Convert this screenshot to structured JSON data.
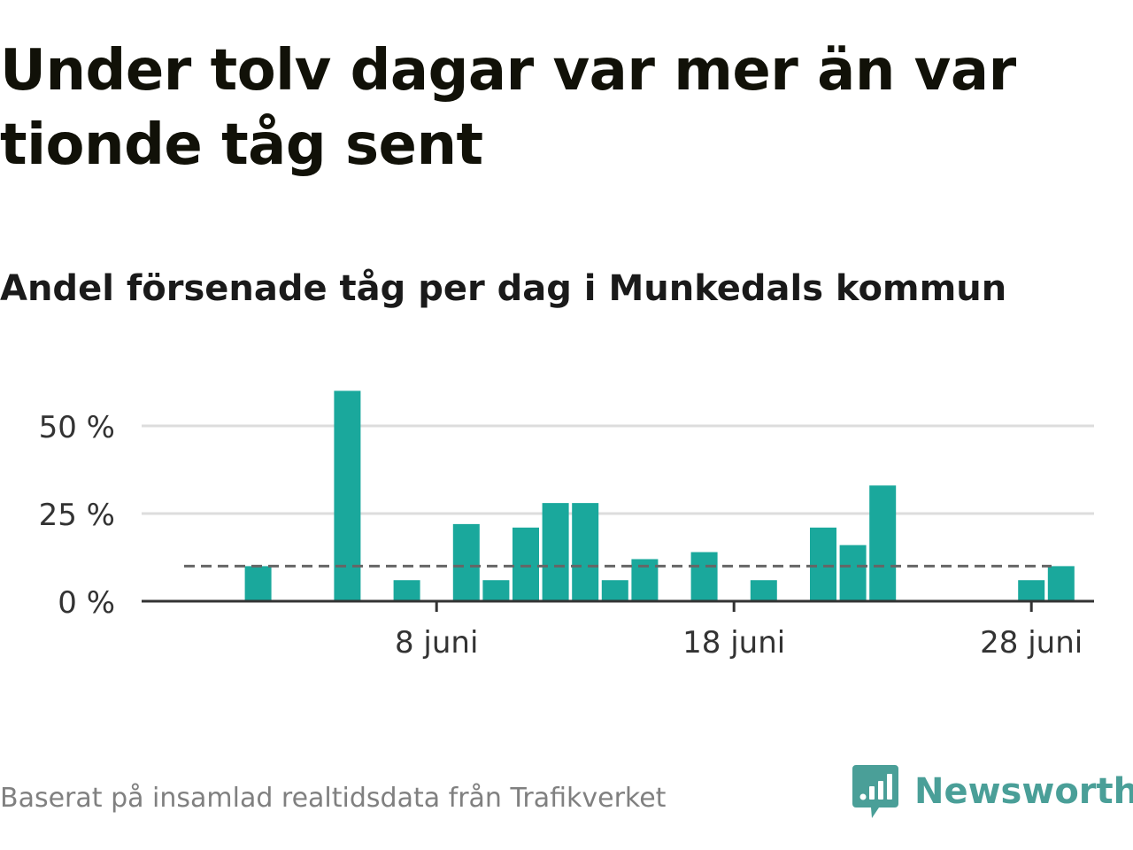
{
  "headline": "Under tolv dagar var mer än var tionde tåg sent",
  "subtitle": "Andel försenade tåg per dag i Munkedals kommun",
  "source": "Baserat på insamlad realtidsdata från Trafikverket",
  "brand": {
    "name": "Newsworthy",
    "icon": "newsworthy-logo-icon",
    "color": "#4a9f98"
  },
  "colors": {
    "bar": "#1aa89c",
    "reference_line": "#666666",
    "grid": "#dddddd",
    "axis": "#333333"
  },
  "chart_data": {
    "type": "bar",
    "x": [
      "2023-06-01",
      "2023-06-02",
      "2023-06-03",
      "2023-06-04",
      "2023-06-05",
      "2023-06-06",
      "2023-06-07",
      "2023-06-08",
      "2023-06-09",
      "2023-06-10",
      "2023-06-11",
      "2023-06-12",
      "2023-06-13",
      "2023-06-14",
      "2023-06-15",
      "2023-06-16",
      "2023-06-17",
      "2023-06-18",
      "2023-06-19",
      "2023-06-20",
      "2023-06-21",
      "2023-06-22",
      "2023-06-23",
      "2023-06-24",
      "2023-06-25",
      "2023-06-26",
      "2023-06-27",
      "2023-06-28",
      "2023-06-29"
    ],
    "values": [
      null,
      10,
      null,
      null,
      60,
      null,
      6,
      null,
      22,
      6,
      21,
      28,
      28,
      6,
      12,
      null,
      14,
      null,
      6,
      null,
      21,
      16,
      33,
      null,
      null,
      null,
      null,
      6,
      10
    ],
    "reference_line": {
      "value": 10,
      "style": "dashed"
    },
    "ylim": [
      0,
      60
    ],
    "yticks": [
      0,
      25,
      50
    ],
    "ytick_labels": [
      "0 %",
      "25 %",
      "50 %"
    ],
    "xticks": [
      "2023-06-08",
      "2023-06-18",
      "2023-06-28"
    ],
    "xtick_labels": [
      "8 juni",
      "18 juni",
      "28 juni"
    ],
    "grid": true,
    "legend": "none"
  }
}
